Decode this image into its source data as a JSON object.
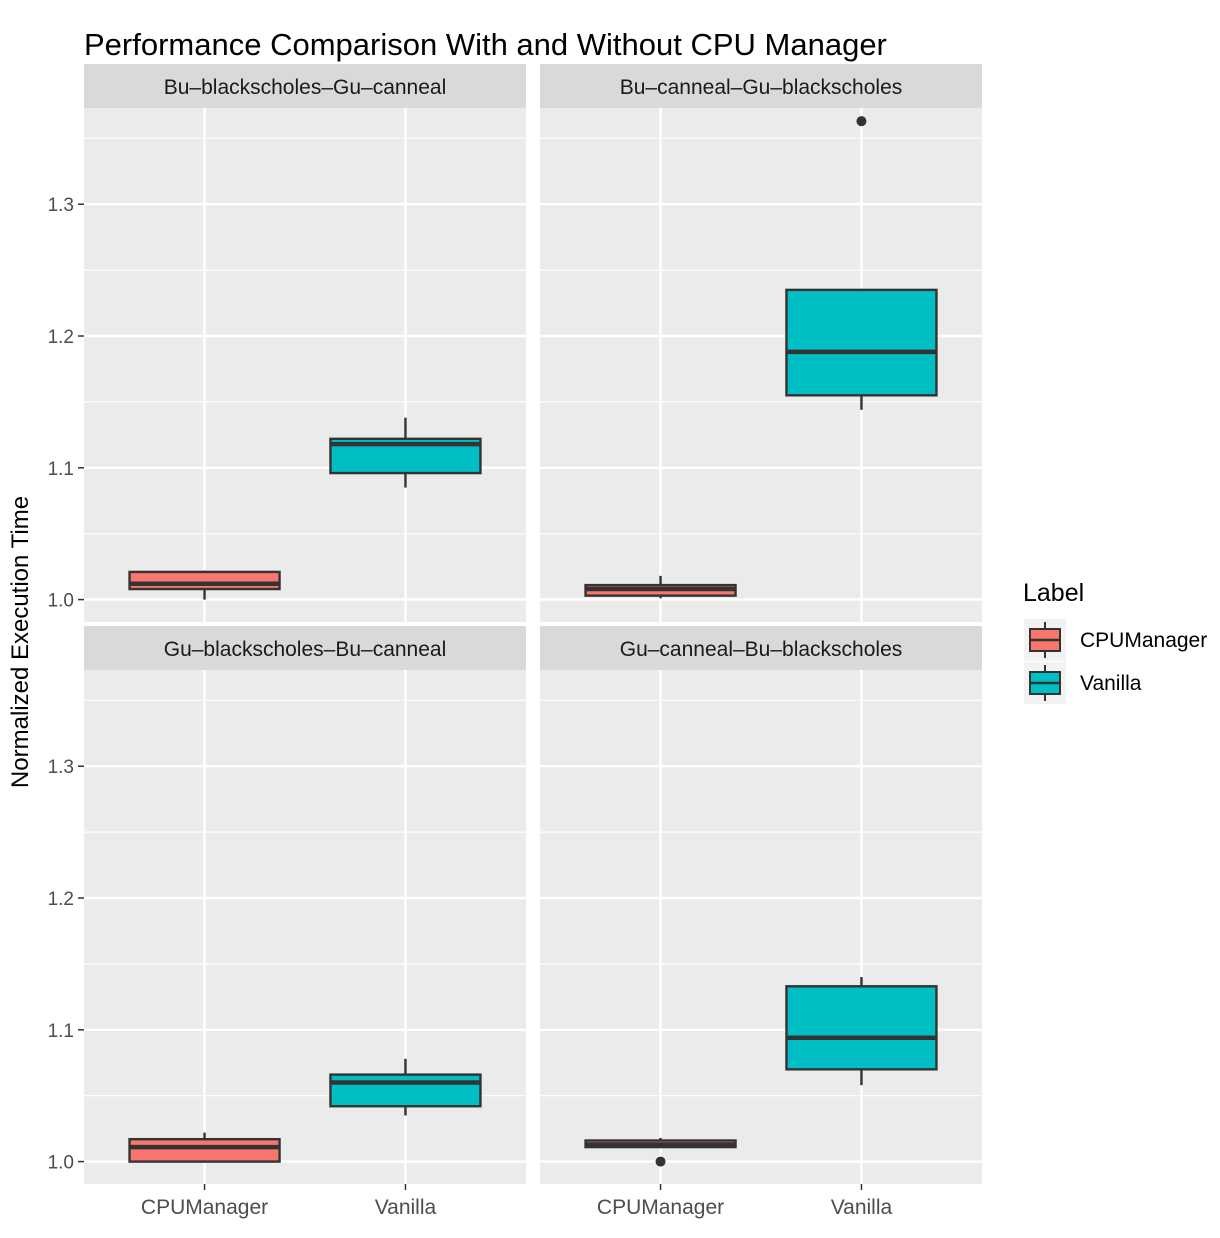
{
  "chart_data": {
    "type": "boxplot",
    "title": "Performance Comparison With and Without CPU Manager",
    "xlabel": "",
    "ylabel": "Normalized Execution Time",
    "ylim": [
      0.983,
      1.373
    ],
    "yticks": [
      1.0,
      1.1,
      1.2,
      1.3
    ],
    "ytick_labels": [
      "1.0",
      "1.1",
      "1.2",
      "1.3"
    ],
    "categories": [
      "CPUManager",
      "Vanilla"
    ],
    "grid": true,
    "legend": {
      "title": "Label",
      "position": "right",
      "entries": [
        "CPUManager",
        "Vanilla"
      ]
    },
    "colors": {
      "CPUManager": "#F8766D",
      "Vanilla": "#00BFC4"
    },
    "facets": [
      {
        "label": "Bu–blackscholes–Gu–canneal",
        "boxes": [
          {
            "category": "CPUManager",
            "lower_whisker": 1.0,
            "q1": 1.008,
            "median": 1.012,
            "q3": 1.021,
            "upper_whisker": 1.022,
            "outliers": []
          },
          {
            "category": "Vanilla",
            "lower_whisker": 1.085,
            "q1": 1.096,
            "median": 1.118,
            "q3": 1.122,
            "upper_whisker": 1.138,
            "outliers": []
          }
        ]
      },
      {
        "label": "Bu–canneal–Gu–blackscholes",
        "boxes": [
          {
            "category": "CPUManager",
            "lower_whisker": 1.001,
            "q1": 1.003,
            "median": 1.008,
            "q3": 1.011,
            "upper_whisker": 1.018,
            "outliers": []
          },
          {
            "category": "Vanilla",
            "lower_whisker": 1.144,
            "q1": 1.155,
            "median": 1.188,
            "q3": 1.235,
            "upper_whisker": 1.235,
            "outliers": [
              1.363
            ]
          }
        ]
      },
      {
        "label": "Gu–blackscholes–Bu–canneal",
        "boxes": [
          {
            "category": "CPUManager",
            "lower_whisker": 1.0,
            "q1": 1.0,
            "median": 1.011,
            "q3": 1.017,
            "upper_whisker": 1.022,
            "outliers": []
          },
          {
            "category": "Vanilla",
            "lower_whisker": 1.035,
            "q1": 1.042,
            "median": 1.06,
            "q3": 1.066,
            "upper_whisker": 1.078,
            "outliers": []
          }
        ]
      },
      {
        "label": "Gu–canneal–Bu–blackscholes",
        "boxes": [
          {
            "category": "CPUManager",
            "lower_whisker": 1.011,
            "q1": 1.011,
            "median": 1.013,
            "q3": 1.016,
            "upper_whisker": 1.018,
            "outliers": [
              1.0
            ]
          },
          {
            "category": "Vanilla",
            "lower_whisker": 1.058,
            "q1": 1.07,
            "median": 1.094,
            "q3": 1.133,
            "upper_whisker": 1.14,
            "outliers": []
          }
        ]
      }
    ]
  }
}
